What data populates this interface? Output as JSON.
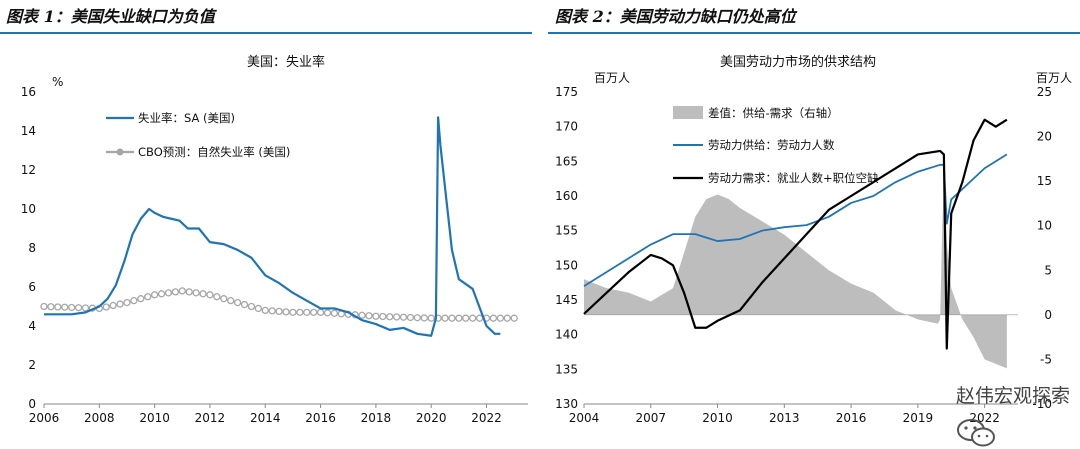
{
  "header": {
    "fig1_title": "图表 1：美国失业缺口为负值",
    "fig2_title": "图表 2：美国劳动力缺口仍处高位"
  },
  "watermark": {
    "text": "赵伟宏观探索",
    "icon": "wechat-icon"
  },
  "colors": {
    "blue": "#1f74b6",
    "gray": "#a6a6a6",
    "black": "#000000",
    "bar": "#bdbdbd"
  },
  "chart_data": [
    {
      "type": "line",
      "title": "美国：失业率",
      "ylabel": "%",
      "xlim": [
        2006,
        2023.5
      ],
      "ylim": [
        0,
        16
      ],
      "yticks": [
        0,
        2,
        4,
        6,
        8,
        10,
        12,
        14,
        16
      ],
      "xticks": [
        2006,
        2008,
        2010,
        2012,
        2014,
        2016,
        2018,
        2020,
        2022
      ],
      "legend_position": "top-left",
      "series": [
        {
          "name": "失业率：SA (美国)",
          "style": "line",
          "color": "#1f74b6",
          "x": [
            2006.0,
            2006.5,
            2007.0,
            2007.5,
            2008.0,
            2008.3,
            2008.6,
            2008.9,
            2009.2,
            2009.5,
            2009.8,
            2010.0,
            2010.3,
            2010.6,
            2010.9,
            2011.2,
            2011.6,
            2012.0,
            2012.5,
            2013.0,
            2013.5,
            2014.0,
            2014.5,
            2015.0,
            2015.5,
            2016.0,
            2016.5,
            2017.0,
            2017.5,
            2018.0,
            2018.5,
            2019.0,
            2019.5,
            2020.0,
            2020.17,
            2020.25,
            2020.33,
            2020.5,
            2020.75,
            2021.0,
            2021.5,
            2022.0,
            2022.3,
            2022.5
          ],
          "y": [
            4.6,
            4.6,
            4.6,
            4.7,
            5.0,
            5.4,
            6.1,
            7.3,
            8.7,
            9.5,
            10.0,
            9.8,
            9.6,
            9.5,
            9.4,
            9.0,
            9.0,
            8.3,
            8.2,
            7.9,
            7.5,
            6.6,
            6.2,
            5.7,
            5.3,
            4.9,
            4.9,
            4.7,
            4.3,
            4.1,
            3.8,
            3.9,
            3.6,
            3.5,
            4.4,
            14.7,
            13.3,
            11.1,
            7.9,
            6.4,
            5.9,
            4.0,
            3.6,
            3.6
          ]
        },
        {
          "name": "CBO预测：自然失业率 (美国)",
          "style": "marker-line",
          "color": "#a6a6a6",
          "x": [
            2006,
            2007,
            2008,
            2009,
            2010,
            2011,
            2012,
            2013,
            2014,
            2015,
            2016,
            2017,
            2018,
            2019,
            2020,
            2021,
            2022,
            2023
          ],
          "y": [
            5.0,
            4.95,
            4.9,
            5.2,
            5.6,
            5.8,
            5.6,
            5.2,
            4.8,
            4.7,
            4.7,
            4.6,
            4.5,
            4.45,
            4.4,
            4.4,
            4.4,
            4.4
          ]
        }
      ]
    },
    {
      "type": "line",
      "title": "美国劳动力市场的供求结构",
      "ylabel_left": "百万人",
      "ylabel_right": "百万人",
      "xlim": [
        2004,
        2023.5
      ],
      "ylim": [
        130,
        175
      ],
      "ylim_right": [
        -10,
        25
      ],
      "yticks": [
        130,
        135,
        140,
        145,
        150,
        155,
        160,
        165,
        170,
        175
      ],
      "yticks_right": [
        -10,
        -5,
        0,
        5,
        10,
        15,
        20,
        25
      ],
      "xticks": [
        2004,
        2007,
        2010,
        2013,
        2016,
        2019,
        2022
      ],
      "legend_position": "top-left",
      "series": [
        {
          "name": "差值：供给-需求（右轴）",
          "style": "area",
          "axis": "right",
          "color": "#bdbdbd",
          "x": [
            2004.0,
            2005.0,
            2006.0,
            2007.0,
            2008.0,
            2008.5,
            2009.0,
            2009.5,
            2010.0,
            2010.5,
            2011.0,
            2012.0,
            2013.0,
            2014.0,
            2015.0,
            2016.0,
            2017.0,
            2018.0,
            2019.0,
            2019.9,
            2020.0,
            2020.1,
            2020.17,
            2020.3,
            2020.5,
            2021.0,
            2021.5,
            2022.0,
            2022.5,
            2023.0
          ],
          "y": [
            4,
            3,
            2.5,
            1.5,
            3,
            7,
            11,
            13,
            13.5,
            13,
            12,
            10.5,
            9,
            7,
            5,
            3.5,
            2.5,
            0.5,
            -0.5,
            -1,
            -0.5,
            10,
            15,
            8,
            3,
            -0.5,
            -2.5,
            -5,
            -5.5,
            -6
          ]
        },
        {
          "name": "劳动力供给：劳动力人数",
          "style": "line",
          "axis": "left",
          "color": "#1f74b6",
          "x": [
            2004.0,
            2005.0,
            2006.0,
            2007.0,
            2008.0,
            2009.0,
            2009.5,
            2010.0,
            2011.0,
            2012.0,
            2013.0,
            2014.0,
            2015.0,
            2016.0,
            2017.0,
            2018.0,
            2019.0,
            2020.0,
            2020.17,
            2020.3,
            2020.5,
            2021.0,
            2022.0,
            2023.0
          ],
          "y": [
            147,
            149,
            151,
            153,
            154.5,
            154.5,
            154,
            153.5,
            153.8,
            155,
            155.5,
            155.8,
            157,
            159,
            160,
            162,
            163.5,
            164.5,
            164.5,
            156,
            159.5,
            161,
            164,
            166
          ]
        },
        {
          "name": "劳动力需求：就业人数+职位空缺",
          "style": "line",
          "axis": "left",
          "color": "#000000",
          "x": [
            2004.0,
            2005.0,
            2006.0,
            2007.0,
            2007.5,
            2008.0,
            2008.5,
            2009.0,
            2009.5,
            2010.0,
            2011.0,
            2012.0,
            2013.0,
            2014.0,
            2015.0,
            2016.0,
            2017.0,
            2018.0,
            2019.0,
            2020.0,
            2020.17,
            2020.3,
            2020.5,
            2021.0,
            2021.5,
            2022.0,
            2022.5,
            2023.0
          ],
          "y": [
            143,
            146,
            149,
            151.5,
            151,
            150,
            146,
            141,
            141,
            142,
            143.5,
            147.5,
            151,
            154.5,
            158,
            160,
            162,
            164,
            166,
            166.5,
            166,
            138,
            157.5,
            162,
            168,
            171,
            170,
            171
          ]
        }
      ]
    }
  ]
}
